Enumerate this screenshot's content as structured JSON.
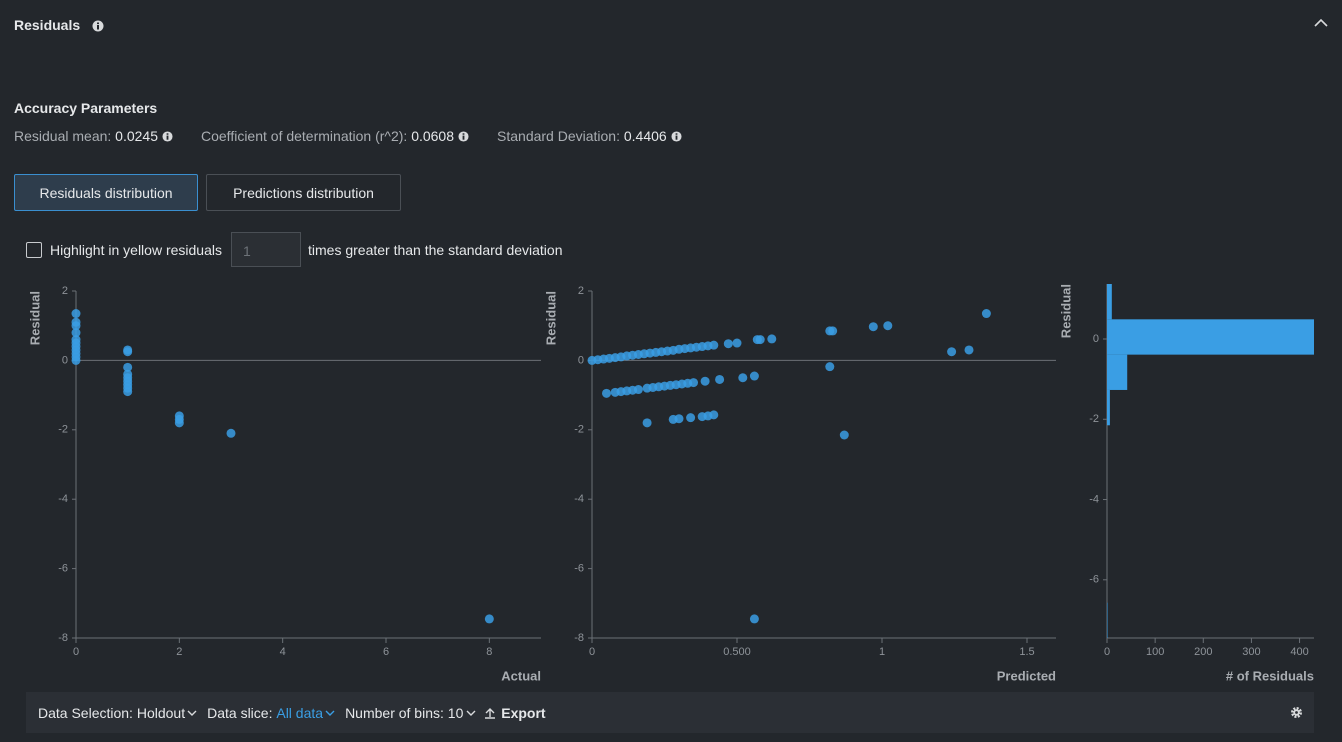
{
  "header": {
    "title": "Residuals"
  },
  "accuracy": {
    "title": "Accuracy Parameters",
    "metrics": [
      {
        "label": "Residual mean:",
        "value": 0.0245
      },
      {
        "label": "Coefficient of determination (r^2):",
        "value": 0.0608
      },
      {
        "label": "Standard Deviation:",
        "value": 0.4406
      }
    ]
  },
  "tabs": [
    "Residuals distribution",
    "Predictions distribution"
  ],
  "highlight": {
    "label": "Highlight in yellow residuals",
    "input": 1,
    "suffix": "times greater than the standard deviation"
  },
  "toolbar": {
    "data_selection": {
      "label": "Data Selection:",
      "value": "Holdout"
    },
    "data_slice": {
      "label": "Data slice:",
      "value": "All data"
    },
    "bins": {
      "label": "Number of bins:",
      "value": 10
    },
    "export": "Export"
  },
  "chart_data": [
    {
      "type": "scatter",
      "y_label": "Residual",
      "x_label": "Actual",
      "color": "#3a9ee4",
      "x": [
        0,
        0,
        0,
        0,
        0,
        0,
        0,
        0,
        0,
        0,
        0,
        1,
        1,
        1,
        1,
        1,
        1,
        1,
        1,
        1,
        2,
        2,
        2,
        3,
        8
      ],
      "values": [
        1.35,
        1.1,
        1.0,
        0.8,
        0.6,
        0.5,
        0.4,
        0.3,
        0.2,
        0.1,
        0,
        0.3,
        0.25,
        -0.2,
        -0.4,
        -0.5,
        -0.6,
        -0.7,
        -0.8,
        -0.9,
        -1.6,
        -1.7,
        -1.8,
        -2.1,
        -7.45
      ],
      "xlim": [
        0,
        9
      ],
      "xticks": [
        0,
        2,
        4,
        6,
        8
      ],
      "ylim": [
        -8,
        2
      ],
      "yticks": [
        2,
        0,
        -2,
        -4,
        -6,
        -8
      ]
    },
    {
      "type": "scatter",
      "y_label": "Residual",
      "x_label": "Predicted",
      "color": "#3a9ee4",
      "x": [
        0,
        0.02,
        0.04,
        0.06,
        0.08,
        0.1,
        0.12,
        0.14,
        0.16,
        0.18,
        0.2,
        0.22,
        0.24,
        0.26,
        0.28,
        0.3,
        0.32,
        0.34,
        0.36,
        0.38,
        0.4,
        0.42,
        0.05,
        0.08,
        0.1,
        0.12,
        0.14,
        0.16,
        0.19,
        0.21,
        0.23,
        0.25,
        0.27,
        0.29,
        0.31,
        0.33,
        0.35,
        0.39,
        0.19,
        0.28,
        0.3,
        0.34,
        0.38,
        0.4,
        0.42,
        0.44,
        0.52,
        0.56,
        0.47,
        0.5,
        0.57,
        0.58,
        0.62,
        0.82,
        0.83,
        0.97,
        1.02,
        0.82,
        0.87,
        0.56,
        1.24,
        1.3,
        1.36
      ],
      "values": [
        0,
        0.02,
        0.04,
        0.06,
        0.08,
        0.1,
        0.13,
        0.15,
        0.17,
        0.19,
        0.21,
        0.23,
        0.25,
        0.27,
        0.29,
        0.32,
        0.34,
        0.36,
        0.38,
        0.4,
        0.42,
        0.44,
        -0.95,
        -0.92,
        -0.9,
        -0.88,
        -0.86,
        -0.84,
        -0.8,
        -0.78,
        -0.76,
        -0.74,
        -0.72,
        -0.7,
        -0.68,
        -0.66,
        -0.64,
        -0.6,
        -1.8,
        -1.7,
        -1.68,
        -1.65,
        -1.62,
        -1.6,
        -1.57,
        -0.55,
        -0.5,
        -0.45,
        0.48,
        0.5,
        0.6,
        0.6,
        0.62,
        0.85,
        0.85,
        0.97,
        1.0,
        -0.18,
        -2.15,
        -7.45,
        0.25,
        0.3,
        1.35
      ],
      "xlim": [
        0,
        1.6
      ],
      "xticks": [
        0,
        {
          "value": 0.5,
          "label": "0.500"
        },
        1,
        1.5
      ],
      "ylim": [
        -8,
        2
      ],
      "yticks": [
        2,
        0,
        -2,
        -4,
        -6,
        -8
      ]
    },
    {
      "type": "histogram",
      "orientation": "horizontal",
      "y_label": "Residual",
      "x_label": "# of Residuals",
      "color": "#3a9ee4",
      "bins": [
        -7.45,
        -6.57,
        -5.68,
        -4.8,
        -3.92,
        -3.04,
        -2.15,
        -1.27,
        -0.39,
        0.49,
        1.37
      ],
      "values": [
        1,
        0,
        0,
        0,
        0,
        0,
        6,
        42,
        430,
        10
      ],
      "xlim": [
        0,
        430
      ],
      "xticks": [
        0,
        100,
        200,
        300,
        400
      ],
      "ylim": [
        -7.45,
        1.37
      ],
      "yticks": [
        0,
        -2,
        -4,
        -6
      ]
    }
  ]
}
